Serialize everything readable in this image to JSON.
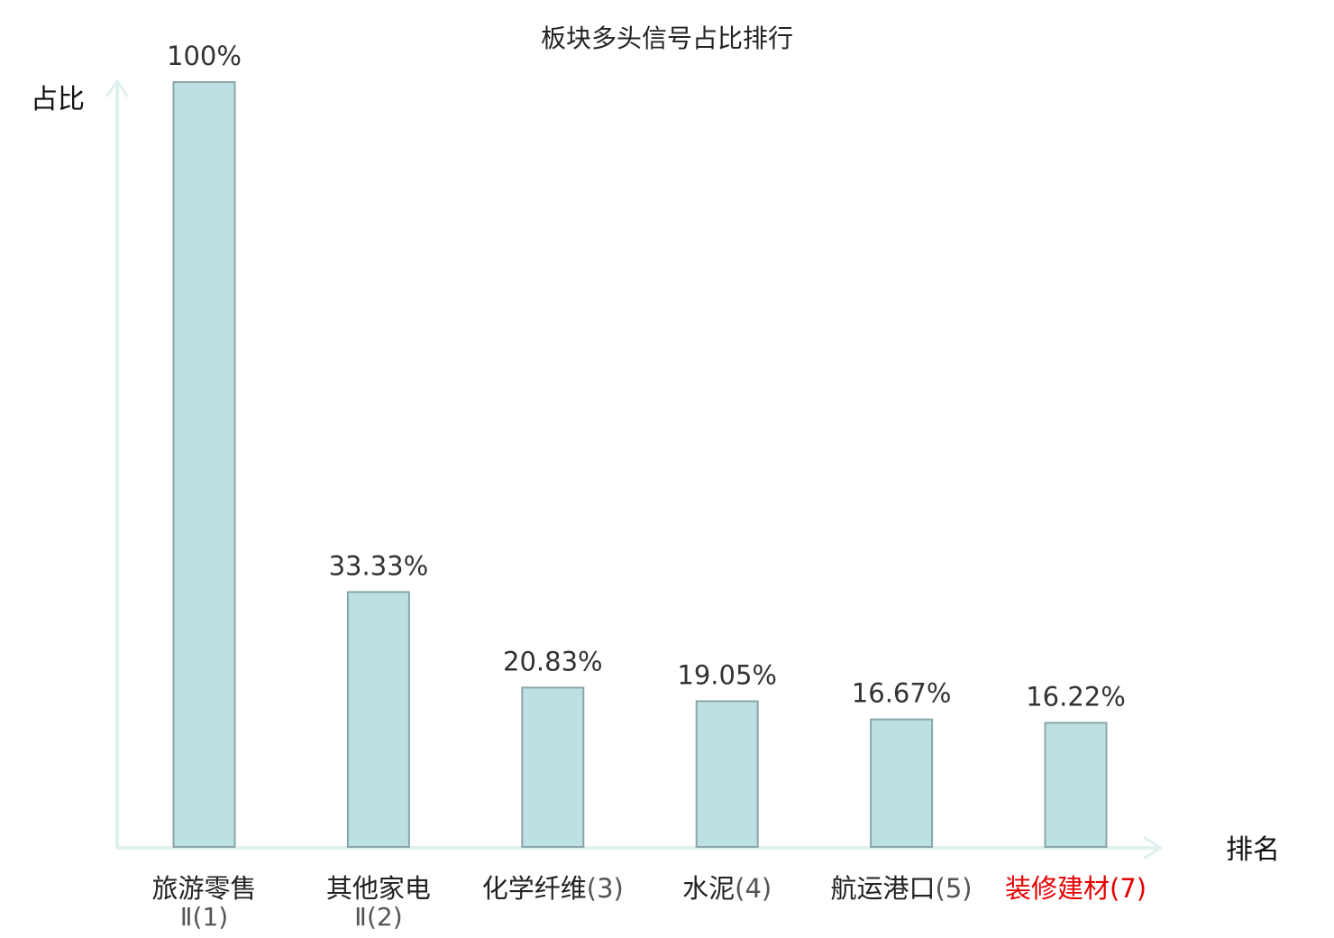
{
  "chart_data": {
    "type": "bar",
    "title": "板块多头信号占比排行",
    "ylabel": "占比",
    "xlabel": "排名",
    "ylim": [
      0,
      100
    ],
    "grid": false,
    "categories": [
      {
        "name": "旅游零售",
        "rank": "Ⅱ(1)",
        "highlight": false
      },
      {
        "name": "其他家电",
        "rank": "Ⅱ(2)",
        "highlight": false
      },
      {
        "name": "化学纤维",
        "rank": "(3)",
        "highlight": false
      },
      {
        "name": "水泥",
        "rank": "(4)",
        "highlight": false
      },
      {
        "name": "航运港口",
        "rank": "(5)",
        "highlight": false
      },
      {
        "name": "装修建材",
        "rank": "(7)",
        "highlight": true
      }
    ],
    "values": [
      100,
      33.33,
      20.83,
      19.05,
      16.67,
      16.22
    ],
    "value_labels": [
      "100%",
      "33.33%",
      "20.83%",
      "19.05%",
      "16.67%",
      "16.22%"
    ]
  },
  "colors": {
    "bar_fill": "#bde0e3",
    "bar_stroke": "#8aa6a9",
    "axis": "#dff0ee",
    "highlight_text": "#e60000"
  }
}
